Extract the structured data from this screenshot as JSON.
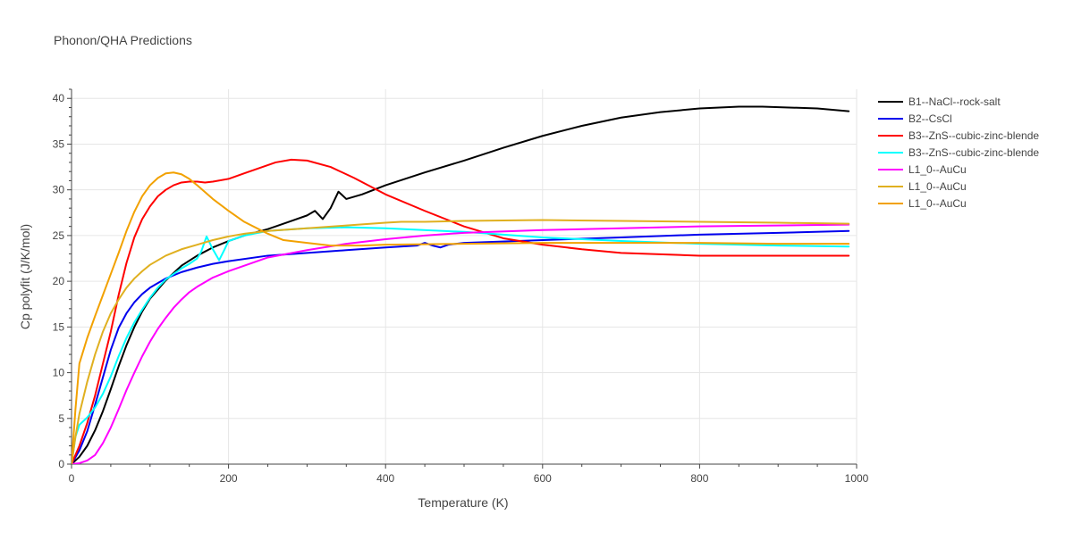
{
  "chart_data": {
    "type": "line",
    "title": "Phonon/QHA Predictions",
    "xlabel": "Temperature (K)",
    "ylabel": "Cp polyfit (J/K/mol)",
    "xlim": [
      0,
      1000
    ],
    "ylim": [
      0,
      41
    ],
    "xticks": [
      0,
      200,
      400,
      600,
      800,
      1000
    ],
    "yticks": [
      0,
      5,
      10,
      15,
      20,
      25,
      30,
      35,
      40
    ],
    "grid": true,
    "legend_position": "top-right",
    "series": [
      {
        "name": "B1--NaCl--rock-salt",
        "color": "#000000",
        "points": [
          [
            0,
            0
          ],
          [
            10,
            0.8
          ],
          [
            20,
            2.0
          ],
          [
            30,
            3.7
          ],
          [
            40,
            5.8
          ],
          [
            50,
            8.2
          ],
          [
            60,
            10.7
          ],
          [
            70,
            13.0
          ],
          [
            80,
            15.0
          ],
          [
            90,
            16.7
          ],
          [
            100,
            18.1
          ],
          [
            120,
            20.1
          ],
          [
            140,
            21.7
          ],
          [
            160,
            22.8
          ],
          [
            180,
            23.7
          ],
          [
            200,
            24.4
          ],
          [
            220,
            25.0
          ],
          [
            250,
            25.7
          ],
          [
            280,
            26.6
          ],
          [
            300,
            27.2
          ],
          [
            310,
            27.7
          ],
          [
            320,
            26.8
          ],
          [
            330,
            28.0
          ],
          [
            340,
            29.8
          ],
          [
            350,
            29.0
          ],
          [
            370,
            29.5
          ],
          [
            400,
            30.5
          ],
          [
            450,
            31.9
          ],
          [
            500,
            33.2
          ],
          [
            550,
            34.6
          ],
          [
            600,
            35.9
          ],
          [
            650,
            37.0
          ],
          [
            700,
            37.9
          ],
          [
            750,
            38.5
          ],
          [
            800,
            38.9
          ],
          [
            850,
            39.1
          ],
          [
            880,
            39.1
          ],
          [
            950,
            38.9
          ],
          [
            990,
            38.6
          ]
        ]
      },
      {
        "name": "B2--CsCl",
        "color": "#0000ee",
        "points": [
          [
            0,
            0
          ],
          [
            10,
            1.5
          ],
          [
            20,
            3.6
          ],
          [
            30,
            6.5
          ],
          [
            40,
            9.5
          ],
          [
            50,
            12.5
          ],
          [
            60,
            14.9
          ],
          [
            70,
            16.5
          ],
          [
            80,
            17.7
          ],
          [
            90,
            18.6
          ],
          [
            100,
            19.3
          ],
          [
            120,
            20.3
          ],
          [
            140,
            21.0
          ],
          [
            160,
            21.5
          ],
          [
            180,
            21.9
          ],
          [
            200,
            22.2
          ],
          [
            250,
            22.8
          ],
          [
            300,
            23.1
          ],
          [
            350,
            23.4
          ],
          [
            400,
            23.7
          ],
          [
            440,
            23.9
          ],
          [
            450,
            24.2
          ],
          [
            460,
            23.9
          ],
          [
            470,
            23.7
          ],
          [
            480,
            24.0
          ],
          [
            500,
            24.2
          ],
          [
            600,
            24.5
          ],
          [
            700,
            24.8
          ],
          [
            800,
            25.1
          ],
          [
            900,
            25.3
          ],
          [
            990,
            25.5
          ]
        ]
      },
      {
        "name": "B3--ZnS--cubic-zinc-blende",
        "color": "#ff0000",
        "points": [
          [
            0,
            0
          ],
          [
            10,
            2.0
          ],
          [
            20,
            4.5
          ],
          [
            30,
            7.5
          ],
          [
            40,
            11.0
          ],
          [
            50,
            14.5
          ],
          [
            60,
            18.5
          ],
          [
            70,
            22.0
          ],
          [
            80,
            24.8
          ],
          [
            90,
            26.8
          ],
          [
            100,
            28.2
          ],
          [
            110,
            29.3
          ],
          [
            120,
            30.0
          ],
          [
            130,
            30.5
          ],
          [
            140,
            30.8
          ],
          [
            150,
            30.9
          ],
          [
            160,
            30.9
          ],
          [
            170,
            30.8
          ],
          [
            180,
            30.9
          ],
          [
            200,
            31.2
          ],
          [
            220,
            31.8
          ],
          [
            240,
            32.4
          ],
          [
            260,
            33.0
          ],
          [
            280,
            33.3
          ],
          [
            300,
            33.2
          ],
          [
            330,
            32.5
          ],
          [
            360,
            31.3
          ],
          [
            400,
            29.5
          ],
          [
            450,
            27.7
          ],
          [
            500,
            26.0
          ],
          [
            550,
            24.7
          ],
          [
            600,
            24.0
          ],
          [
            650,
            23.5
          ],
          [
            700,
            23.1
          ],
          [
            800,
            22.8
          ],
          [
            900,
            22.8
          ],
          [
            990,
            22.8
          ]
        ]
      },
      {
        "name": "B3--ZnS--cubic-zinc-blende",
        "color": "#00ffff",
        "points": [
          [
            0,
            0
          ],
          [
            5,
            3.0
          ],
          [
            10,
            4.3
          ],
          [
            20,
            5.1
          ],
          [
            30,
            6.2
          ],
          [
            40,
            7.7
          ],
          [
            50,
            9.6
          ],
          [
            60,
            11.8
          ],
          [
            70,
            13.8
          ],
          [
            80,
            15.5
          ],
          [
            90,
            16.9
          ],
          [
            100,
            18.2
          ],
          [
            110,
            19.3
          ],
          [
            120,
            20.2
          ],
          [
            130,
            20.8
          ],
          [
            140,
            21.4
          ],
          [
            150,
            21.9
          ],
          [
            160,
            22.5
          ],
          [
            165,
            23.2
          ],
          [
            172,
            24.9
          ],
          [
            180,
            23.5
          ],
          [
            188,
            22.3
          ],
          [
            195,
            23.5
          ],
          [
            200,
            24.4
          ],
          [
            220,
            25.0
          ],
          [
            250,
            25.5
          ],
          [
            300,
            25.8
          ],
          [
            350,
            25.9
          ],
          [
            400,
            25.8
          ],
          [
            500,
            25.4
          ],
          [
            600,
            24.8
          ],
          [
            700,
            24.4
          ],
          [
            800,
            24.1
          ],
          [
            900,
            23.9
          ],
          [
            990,
            23.8
          ]
        ]
      },
      {
        "name": "L1_0--AuCu",
        "color": "#ff00ff",
        "points": [
          [
            0,
            0
          ],
          [
            10,
            0.1
          ],
          [
            20,
            0.4
          ],
          [
            30,
            1.0
          ],
          [
            40,
            2.3
          ],
          [
            50,
            4.0
          ],
          [
            60,
            6.0
          ],
          [
            70,
            8.1
          ],
          [
            80,
            10.0
          ],
          [
            90,
            11.8
          ],
          [
            100,
            13.4
          ],
          [
            110,
            14.8
          ],
          [
            120,
            16.0
          ],
          [
            130,
            17.1
          ],
          [
            140,
            18.0
          ],
          [
            150,
            18.8
          ],
          [
            160,
            19.4
          ],
          [
            170,
            19.9
          ],
          [
            180,
            20.4
          ],
          [
            200,
            21.1
          ],
          [
            220,
            21.7
          ],
          [
            250,
            22.6
          ],
          [
            300,
            23.4
          ],
          [
            350,
            24.1
          ],
          [
            400,
            24.6
          ],
          [
            450,
            25.0
          ],
          [
            500,
            25.3
          ],
          [
            600,
            25.6
          ],
          [
            700,
            25.8
          ],
          [
            800,
            26.0
          ],
          [
            900,
            26.1
          ],
          [
            990,
            26.2
          ]
        ]
      },
      {
        "name": "L1_0--AuCu",
        "color": "#e0b020",
        "points": [
          [
            0,
            0
          ],
          [
            5,
            3.0
          ],
          [
            10,
            5.5
          ],
          [
            20,
            9.0
          ],
          [
            30,
            12.0
          ],
          [
            40,
            14.5
          ],
          [
            50,
            16.5
          ],
          [
            60,
            18.0
          ],
          [
            70,
            19.3
          ],
          [
            80,
            20.3
          ],
          [
            90,
            21.1
          ],
          [
            100,
            21.8
          ],
          [
            110,
            22.3
          ],
          [
            120,
            22.8
          ],
          [
            140,
            23.5
          ],
          [
            160,
            24.0
          ],
          [
            180,
            24.5
          ],
          [
            200,
            24.9
          ],
          [
            220,
            25.2
          ],
          [
            250,
            25.5
          ],
          [
            300,
            25.8
          ],
          [
            350,
            26.1
          ],
          [
            400,
            26.4
          ],
          [
            420,
            26.5
          ],
          [
            450,
            26.5
          ],
          [
            500,
            26.6
          ],
          [
            600,
            26.7
          ],
          [
            700,
            26.6
          ],
          [
            800,
            26.5
          ],
          [
            900,
            26.4
          ],
          [
            990,
            26.3
          ]
        ]
      },
      {
        "name": "L1_0--AuCu",
        "color": "#f2a100",
        "points": [
          [
            0,
            0
          ],
          [
            5,
            6.0
          ],
          [
            10,
            11.0
          ],
          [
            20,
            13.8
          ],
          [
            30,
            16.2
          ],
          [
            40,
            18.5
          ],
          [
            50,
            20.8
          ],
          [
            60,
            23.1
          ],
          [
            70,
            25.5
          ],
          [
            80,
            27.6
          ],
          [
            90,
            29.3
          ],
          [
            100,
            30.5
          ],
          [
            110,
            31.3
          ],
          [
            120,
            31.8
          ],
          [
            130,
            31.9
          ],
          [
            140,
            31.7
          ],
          [
            150,
            31.2
          ],
          [
            160,
            30.5
          ],
          [
            180,
            29.0
          ],
          [
            200,
            27.7
          ],
          [
            220,
            26.5
          ],
          [
            250,
            25.2
          ],
          [
            270,
            24.5
          ],
          [
            300,
            24.2
          ],
          [
            330,
            23.9
          ],
          [
            370,
            23.9
          ],
          [
            400,
            24.0
          ],
          [
            500,
            24.1
          ],
          [
            600,
            24.2
          ],
          [
            700,
            24.2
          ],
          [
            800,
            24.2
          ],
          [
            900,
            24.1
          ],
          [
            990,
            24.1
          ]
        ]
      }
    ]
  }
}
